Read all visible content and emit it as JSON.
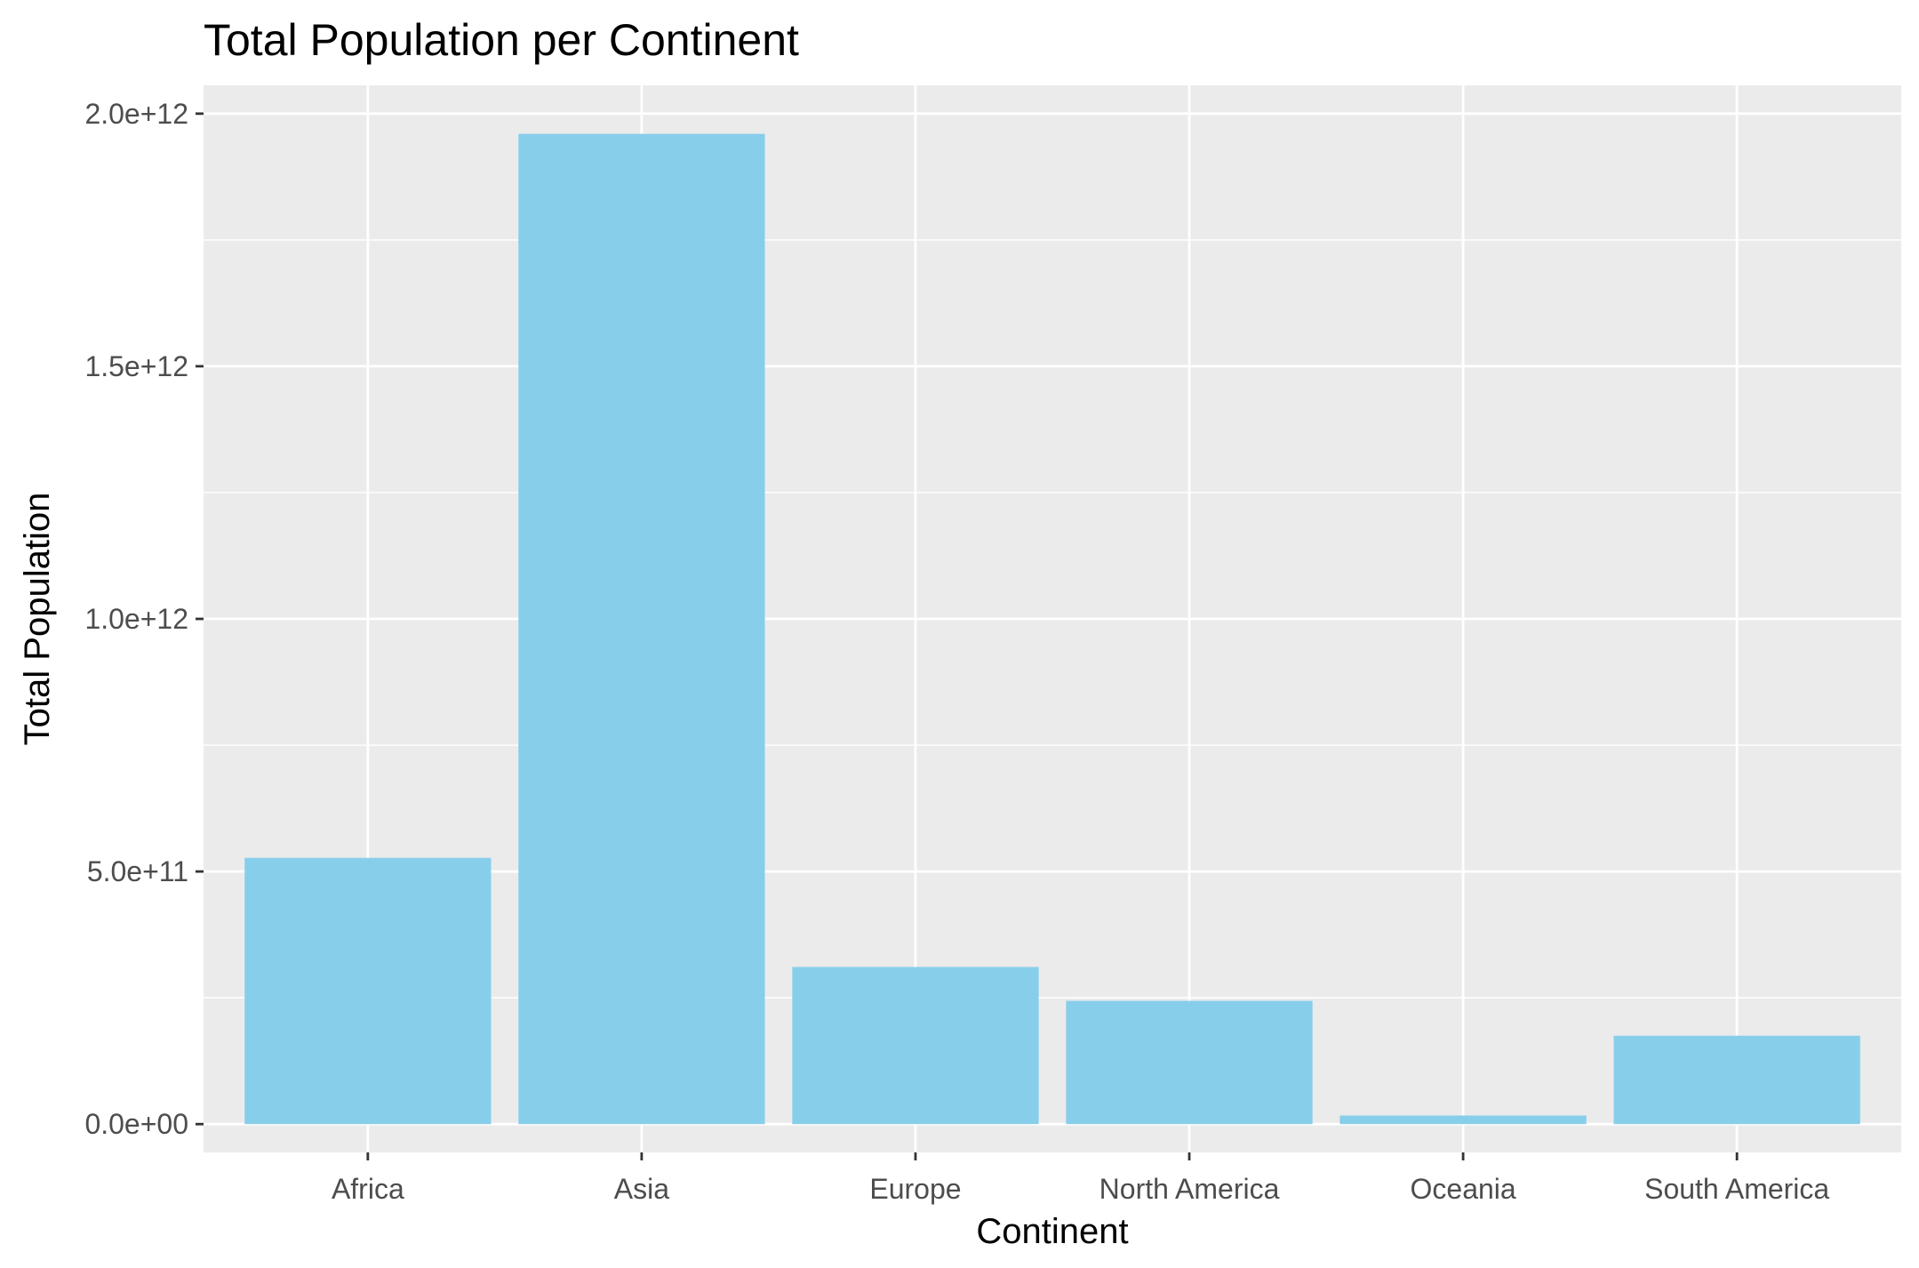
{
  "chart_data": {
    "type": "bar",
    "title": "Total Population per Continent",
    "xlabel": "Continent",
    "ylabel": "Total Population",
    "categories": [
      "Africa",
      "Asia",
      "Europe",
      "North America",
      "Oceania",
      "South America"
    ],
    "values": [
      527000000000,
      1960000000000,
      311000000000,
      244000000000,
      17000000000,
      175000000000
    ],
    "ylim": [
      -56000000000,
      2056000000000
    ],
    "yticks": [
      0,
      500000000000,
      1000000000000,
      1500000000000,
      2000000000000
    ],
    "ytick_labels": [
      "0.0e+00",
      "5.0e+11",
      "1.0e+12",
      "1.5e+12",
      "2.0e+12"
    ],
    "bar_color": "#87CEEB",
    "panel_color": "#EBEBEB",
    "grid_color": "#FFFFFF",
    "grid": true,
    "legend": "none"
  }
}
